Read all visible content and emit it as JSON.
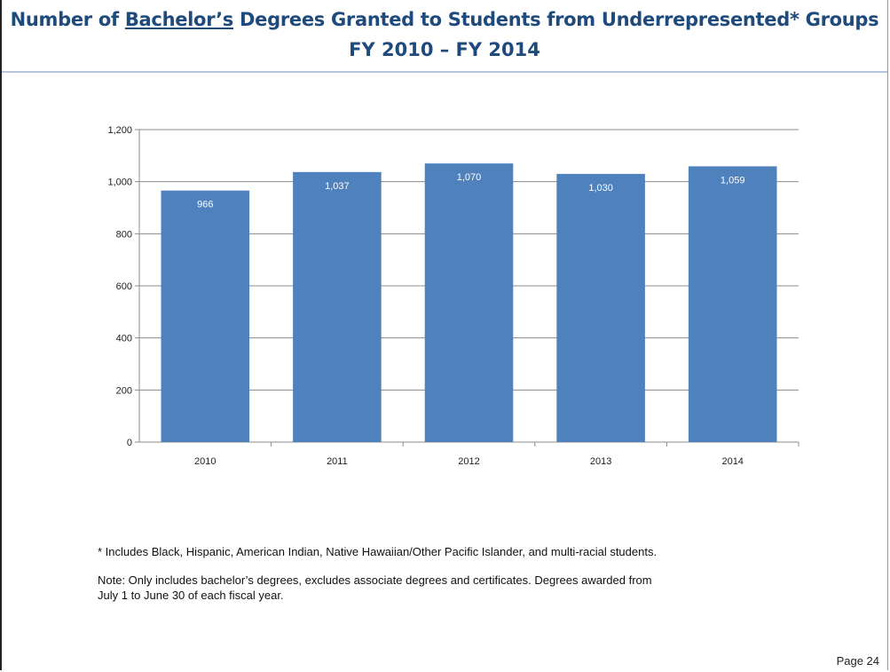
{
  "title": {
    "prefix": "Number of ",
    "underlined": "Bachelor’s",
    "suffix": " Degrees Granted to Students from Underrepresented* Groups",
    "line2": "FY 2010 – FY 2014"
  },
  "chart_data": {
    "type": "bar",
    "title": "Number of Bachelor’s Degrees Granted to Students from Underrepresented* Groups FY 2010 – FY 2014",
    "xlabel": "",
    "ylabel": "",
    "categories": [
      "2010",
      "2011",
      "2012",
      "2013",
      "2014"
    ],
    "values": [
      966,
      1037,
      1070,
      1030,
      1059
    ],
    "data_labels": [
      "966",
      "1,037",
      "1,070",
      "1,030",
      "1,059"
    ],
    "ylim": [
      0,
      1200
    ],
    "yticks": [
      0,
      200,
      400,
      600,
      800,
      1000,
      1200
    ],
    "ytick_labels": [
      "0",
      "200",
      "400",
      "600",
      "800",
      "1,000",
      "1,200"
    ],
    "grid": true,
    "legend": "none",
    "bar_color": "#4f81bd",
    "gridline_color": "#8c8c8c",
    "label_color": "#ffffff"
  },
  "footnote": "* Includes Black, Hispanic, American Indian, Native Hawaiian/Other Pacific Islander, and multi-racial students.",
  "note_line1": "Note:  Only includes bachelor’s degrees, excludes associate degrees and certificates.  Degrees awarded from",
  "note_line2": "July 1 to June 30 of each fiscal year.",
  "page_label": "Page 24",
  "colors": {
    "title": "#1f4a7c",
    "header_rule": "#b9c6df"
  }
}
